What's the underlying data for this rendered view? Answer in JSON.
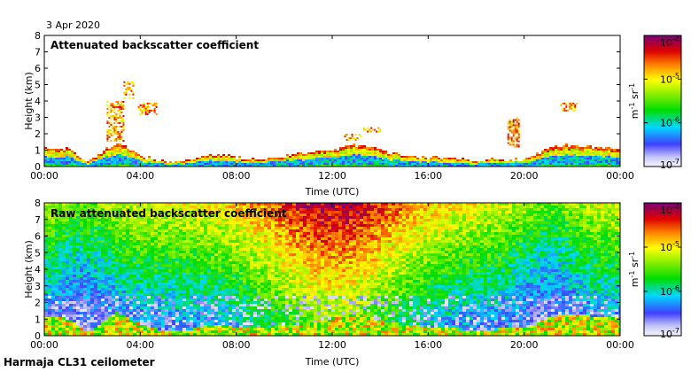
{
  "date_label": "3 Apr 2020",
  "footer_label": "Harmaja CL31 ceilometer",
  "chart_data": [
    {
      "type": "heatmap",
      "title": "Attenuated backscatter coefficient",
      "xlabel": "Time (UTC)",
      "ylabel": "Height (km)",
      "x_ticks": [
        "00:00",
        "04:00",
        "08:00",
        "12:00",
        "16:00",
        "20:00",
        "00:00"
      ],
      "y_ticks": [
        "0",
        "1",
        "2",
        "3",
        "4",
        "5",
        "6",
        "7",
        "8"
      ],
      "xlim_hours": [
        0,
        24
      ],
      "ylim": [
        0,
        8
      ],
      "colorbar": {
        "scale": "log",
        "range": [
          1e-07,
          0.0001
        ],
        "tick_labels": [
          {
            "base": "10",
            "exp": "-4"
          },
          {
            "base": "10",
            "exp": "-5"
          },
          {
            "base": "10",
            "exp": "-6"
          },
          {
            "base": "10",
            "exp": "-7"
          }
        ],
        "unit": {
          "m": "m",
          "m_exp": "-1",
          "sr": " sr",
          "sr_exp": "-1"
        }
      },
      "boundary_layer_top_km": [
        [
          0.0,
          1.2
        ],
        [
          1.0,
          1.1
        ],
        [
          1.8,
          0.3
        ],
        [
          2.3,
          0.9
        ],
        [
          3.0,
          1.5
        ],
        [
          4.0,
          0.7
        ],
        [
          5.0,
          0.35
        ],
        [
          6.0,
          0.4
        ],
        [
          7.0,
          0.8
        ],
        [
          8.0,
          0.6
        ],
        [
          9.0,
          0.5
        ],
        [
          10.0,
          0.7
        ],
        [
          11.0,
          0.9
        ],
        [
          12.0,
          1.1
        ],
        [
          13.0,
          1.4
        ],
        [
          14.0,
          1.0
        ],
        [
          15.0,
          0.7
        ],
        [
          16.0,
          0.6
        ],
        [
          17.0,
          0.5
        ],
        [
          18.0,
          0.4
        ],
        [
          19.0,
          0.5
        ],
        [
          20.0,
          0.5
        ],
        [
          21.0,
          1.2
        ],
        [
          22.0,
          1.4
        ],
        [
          23.0,
          1.2
        ],
        [
          24.0,
          1.1
        ]
      ],
      "elevated_layers": [
        {
          "start_h": 2.6,
          "end_h": 3.3,
          "bottom_km": 1.6,
          "top_km": 4.0
        },
        {
          "start_h": 3.9,
          "end_h": 4.7,
          "bottom_km": 3.2,
          "top_km": 3.9
        },
        {
          "start_h": 3.3,
          "end_h": 3.7,
          "bottom_km": 4.2,
          "top_km": 5.2
        },
        {
          "start_h": 12.5,
          "end_h": 13.2,
          "bottom_km": 1.6,
          "top_km": 2.0
        },
        {
          "start_h": 13.3,
          "end_h": 14.0,
          "bottom_km": 2.1,
          "top_km": 2.4
        },
        {
          "start_h": 19.3,
          "end_h": 19.8,
          "bottom_km": 1.2,
          "top_km": 3.0
        },
        {
          "start_h": 21.5,
          "end_h": 22.2,
          "bottom_km": 3.4,
          "top_km": 3.9
        }
      ]
    },
    {
      "type": "heatmap",
      "title": "Raw attenuated backscatter coefficient",
      "xlabel": "Time (UTC)",
      "ylabel": "Height (km)",
      "x_ticks": [
        "00:00",
        "04:00",
        "08:00",
        "12:00",
        "16:00",
        "20:00",
        "00:00"
      ],
      "y_ticks": [
        "0",
        "1",
        "2",
        "3",
        "4",
        "5",
        "6",
        "7",
        "8"
      ],
      "xlim_hours": [
        0,
        24
      ],
      "ylim": [
        0,
        8
      ],
      "colorbar": {
        "scale": "log",
        "range": [
          1e-07,
          0.0001
        ],
        "tick_labels": [
          {
            "base": "10",
            "exp": "-4"
          },
          {
            "base": "10",
            "exp": "-5"
          },
          {
            "base": "10",
            "exp": "-6"
          },
          {
            "base": "10",
            "exp": "-7"
          }
        ],
        "unit": {
          "m": "m",
          "m_exp": "-1",
          "sr": " sr",
          "sr_exp": "-1"
        }
      }
    }
  ]
}
